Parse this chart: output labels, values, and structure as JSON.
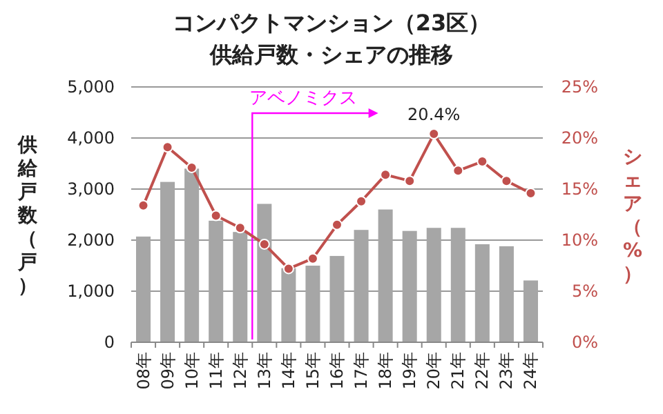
{
  "chart_data": {
    "type": "bar",
    "title": "コンパクトマンション（23区）",
    "subtitle": "供給戸数・シェアの推移",
    "ylabel": "供給戸数（戸）",
    "y2label": "シェア（%）",
    "categories": [
      "08年",
      "09年",
      "10年",
      "11年",
      "12年",
      "13年",
      "14年",
      "15年",
      "16年",
      "17年",
      "18年",
      "19年",
      "20年",
      "21年",
      "22年",
      "23年",
      "24年"
    ],
    "series": [
      {
        "type": "bar",
        "color": "#a6a6a6",
        "values": [
          2070,
          3140,
          3400,
          2380,
          2160,
          2710,
          1450,
          1500,
          1690,
          2200,
          2600,
          2180,
          2240,
          2240,
          1920,
          1880,
          1210
        ]
      },
      {
        "type": "line",
        "axis": "y2",
        "color": "#c0504d",
        "marker": "circle",
        "values": [
          13.4,
          19.1,
          17.1,
          12.4,
          11.2,
          9.6,
          7.2,
          8.2,
          11.5,
          13.8,
          16.4,
          15.8,
          20.4,
          16.8,
          17.7,
          15.8,
          14.6
        ],
        "value_labels": [
          null,
          null,
          null,
          null,
          null,
          null,
          null,
          null,
          null,
          null,
          null,
          null,
          "20.4%",
          null,
          null,
          null,
          null
        ]
      }
    ],
    "ylim": [
      0,
      5000
    ],
    "yticks": [
      0,
      {
        "value": 1000,
        "label": "1,000"
      },
      {
        "value": 2000,
        "label": "2,000"
      },
      {
        "value": 3000,
        "label": "3,000"
      },
      {
        "value": 4000,
        "label": "4,000"
      },
      {
        "value": 5000,
        "label": "5,000"
      }
    ],
    "y2lim": [
      0,
      25
    ],
    "y2ticks": [
      {
        "value": 0,
        "label": "0%"
      },
      {
        "value": 5,
        "label": "5%"
      },
      {
        "value": 10,
        "label": "10%"
      },
      {
        "value": 15,
        "label": "15%"
      },
      {
        "value": 20,
        "label": "20%"
      },
      {
        "value": 25,
        "label": "25%"
      }
    ],
    "grid": "y",
    "annotations": [
      "アベノミクス"
    ]
  }
}
